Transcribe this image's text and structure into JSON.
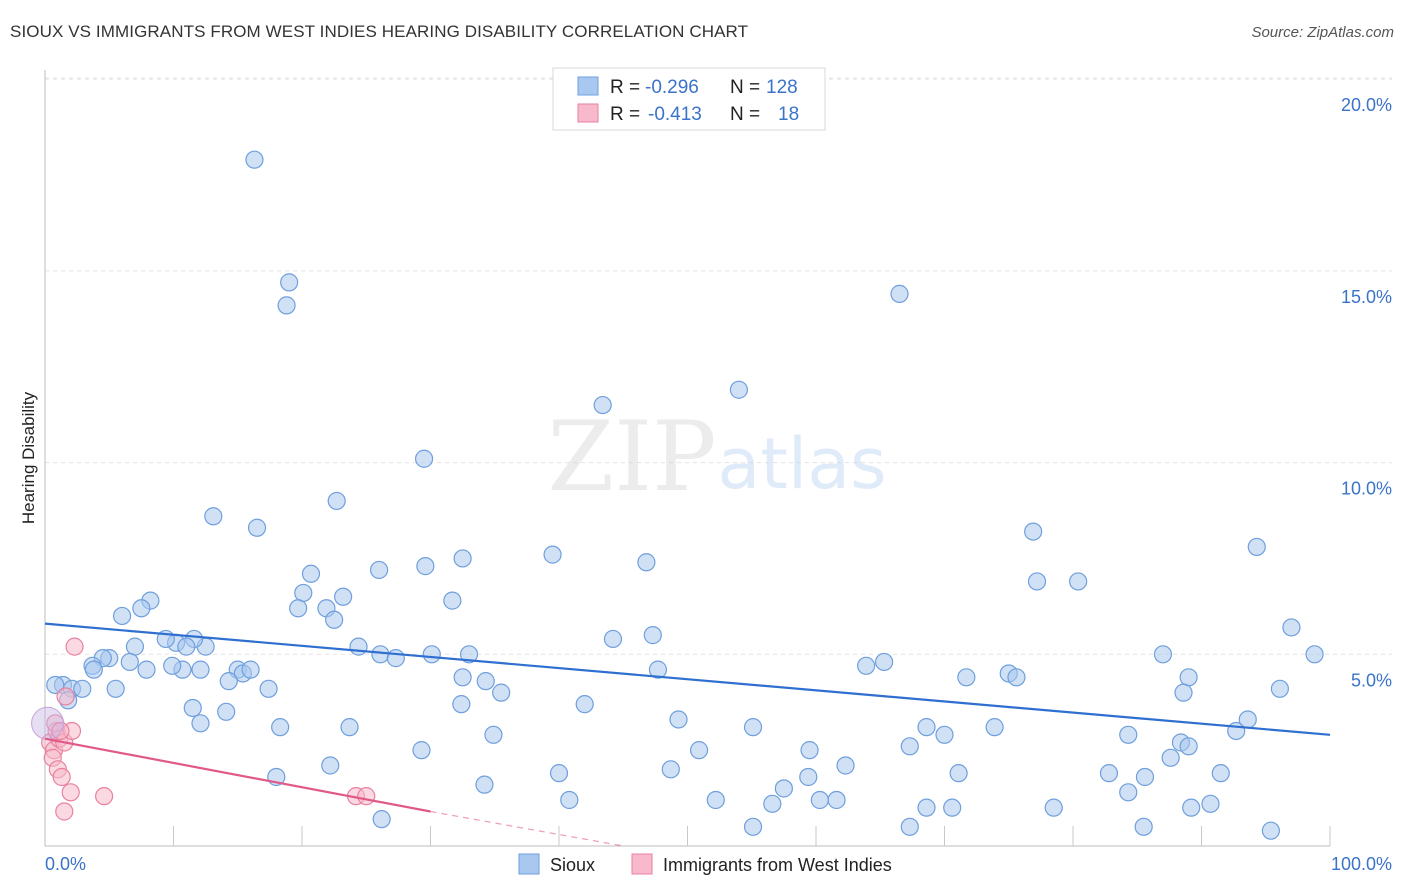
{
  "title": "SIOUX VS IMMIGRANTS FROM WEST INDIES HEARING DISABILITY CORRELATION CHART",
  "source": "Source: ZipAtlas.com",
  "watermark": {
    "zip": "ZIP",
    "atlas": "atlas"
  },
  "stats": [
    {
      "r_label": "R =",
      "r": "-0.296",
      "n_label": "N =",
      "n": "128",
      "color": "#a9c8ef",
      "stroke": "#6f9fdc"
    },
    {
      "r_label": "R =",
      "r": "-0.413",
      "n_label": "N =",
      "n": "18",
      "color": "#f7b9cb",
      "stroke": "#e9829f"
    }
  ],
  "chart_data": {
    "type": "scatter",
    "title": "SIOUX VS IMMIGRANTS FROM WEST INDIES HEARING DISABILITY CORRELATION CHART",
    "xlabel": "",
    "ylabel": "Hearing Disability",
    "xlim": [
      0,
      100
    ],
    "ylim": [
      0,
      20.5
    ],
    "x_tick_labels": [
      "0.0%",
      "100.0%"
    ],
    "y_ticks": [
      5,
      10,
      15,
      20
    ],
    "y_tick_labels": [
      "5.0%",
      "10.0%",
      "15.0%",
      "20.0%"
    ],
    "legend_position": "bottom-center",
    "series": [
      {
        "name": "Sioux",
        "color": "#a9c8ef",
        "stroke": "#6f9fdc",
        "trend": {
          "x0": 0,
          "y0": 5.8,
          "x1": 100,
          "y1": 2.9,
          "color": "#2f6fd0"
        },
        "points": [
          [
            16.3,
            17.9
          ],
          [
            18.8,
            14.1
          ],
          [
            19.0,
            14.7
          ],
          [
            66.5,
            14.4
          ],
          [
            54.0,
            11.9
          ],
          [
            43.4,
            11.5
          ],
          [
            29.5,
            10.1
          ],
          [
            22.7,
            9.0
          ],
          [
            13.1,
            8.6
          ],
          [
            16.5,
            8.3
          ],
          [
            76.9,
            8.2
          ],
          [
            94.3,
            7.8
          ],
          [
            32.5,
            7.5
          ],
          [
            39.5,
            7.6
          ],
          [
            46.8,
            7.4
          ],
          [
            26.0,
            7.2
          ],
          [
            29.6,
            7.3
          ],
          [
            20.7,
            7.1
          ],
          [
            77.2,
            6.9
          ],
          [
            80.4,
            6.9
          ],
          [
            20.1,
            6.6
          ],
          [
            23.2,
            6.5
          ],
          [
            31.7,
            6.4
          ],
          [
            8.2,
            6.4
          ],
          [
            6.0,
            6.0
          ],
          [
            7.5,
            6.2
          ],
          [
            19.7,
            6.2
          ],
          [
            21.9,
            6.2
          ],
          [
            22.5,
            5.9
          ],
          [
            97.0,
            5.7
          ],
          [
            12.5,
            5.2
          ],
          [
            11.6,
            5.4
          ],
          [
            10.2,
            5.3
          ],
          [
            11.0,
            5.2
          ],
          [
            7.0,
            5.2
          ],
          [
            44.2,
            5.4
          ],
          [
            47.3,
            5.5
          ],
          [
            24.4,
            5.2
          ],
          [
            26.1,
            5.0
          ],
          [
            27.3,
            4.9
          ],
          [
            30.1,
            5.0
          ],
          [
            33.0,
            5.0
          ],
          [
            98.8,
            5.0
          ],
          [
            87.0,
            5.0
          ],
          [
            5.0,
            4.9
          ],
          [
            4.5,
            4.9
          ],
          [
            6.6,
            4.8
          ],
          [
            3.7,
            4.7
          ],
          [
            3.8,
            4.6
          ],
          [
            7.9,
            4.6
          ],
          [
            12.1,
            4.6
          ],
          [
            15.0,
            4.6
          ],
          [
            15.4,
            4.5
          ],
          [
            16.0,
            4.6
          ],
          [
            10.7,
            4.6
          ],
          [
            9.9,
            4.7
          ],
          [
            17.4,
            4.1
          ],
          [
            14.3,
            4.3
          ],
          [
            63.9,
            4.7
          ],
          [
            65.3,
            4.8
          ],
          [
            47.7,
            4.6
          ],
          [
            32.5,
            4.4
          ],
          [
            34.3,
            4.3
          ],
          [
            71.7,
            4.4
          ],
          [
            75.0,
            4.5
          ],
          [
            75.6,
            4.4
          ],
          [
            89.0,
            4.4
          ],
          [
            1.4,
            4.2
          ],
          [
            2.1,
            4.1
          ],
          [
            2.9,
            4.1
          ],
          [
            0.8,
            4.2
          ],
          [
            1.8,
            3.8
          ],
          [
            5.5,
            4.1
          ],
          [
            35.5,
            4.0
          ],
          [
            88.6,
            4.0
          ],
          [
            96.1,
            4.1
          ],
          [
            11.5,
            3.6
          ],
          [
            12.1,
            3.2
          ],
          [
            14.1,
            3.5
          ],
          [
            32.4,
            3.7
          ],
          [
            42.0,
            3.7
          ],
          [
            49.3,
            3.3
          ],
          [
            55.1,
            3.1
          ],
          [
            68.6,
            3.1
          ],
          [
            70.0,
            2.9
          ],
          [
            73.9,
            3.1
          ],
          [
            23.7,
            3.1
          ],
          [
            92.7,
            3.0
          ],
          [
            93.6,
            3.3
          ],
          [
            9.4,
            5.4
          ],
          [
            18.3,
            3.1
          ],
          [
            34.9,
            2.9
          ],
          [
            84.3,
            2.9
          ],
          [
            88.4,
            2.7
          ],
          [
            89.0,
            2.6
          ],
          [
            50.9,
            2.5
          ],
          [
            59.5,
            2.5
          ],
          [
            67.3,
            2.6
          ],
          [
            87.6,
            2.3
          ],
          [
            29.3,
            2.5
          ],
          [
            22.2,
            2.1
          ],
          [
            18.0,
            1.8
          ],
          [
            40.0,
            1.9
          ],
          [
            48.7,
            2.0
          ],
          [
            62.3,
            2.1
          ],
          [
            71.1,
            1.9
          ],
          [
            82.8,
            1.9
          ],
          [
            85.6,
            1.8
          ],
          [
            91.5,
            1.9
          ],
          [
            34.2,
            1.6
          ],
          [
            59.4,
            1.8
          ],
          [
            40.8,
            1.2
          ],
          [
            52.2,
            1.2
          ],
          [
            56.6,
            1.1
          ],
          [
            57.5,
            1.5
          ],
          [
            60.3,
            1.2
          ],
          [
            61.6,
            1.2
          ],
          [
            68.6,
            1.0
          ],
          [
            70.6,
            1.0
          ],
          [
            78.5,
            1.0
          ],
          [
            84.3,
            1.4
          ],
          [
            89.2,
            1.0
          ],
          [
            90.7,
            1.1
          ],
          [
            26.2,
            0.7
          ],
          [
            55.1,
            0.5
          ],
          [
            67.3,
            0.5
          ],
          [
            85.5,
            0.5
          ],
          [
            95.4,
            0.4
          ]
        ]
      },
      {
        "name": "Immigrants from West Indies",
        "color": "#f7b9cb",
        "stroke": "#e9829f",
        "trend": {
          "x0": 0,
          "y0": 2.8,
          "x1": 30,
          "y1": 0.9,
          "color": "#e15a87",
          "dash_to": {
            "x": 45,
            "y": 0.0
          }
        },
        "points": [
          [
            0.4,
            2.7
          ],
          [
            0.7,
            2.5
          ],
          [
            0.9,
            3.0
          ],
          [
            1.1,
            2.8
          ],
          [
            0.6,
            2.3
          ],
          [
            0.8,
            3.2
          ],
          [
            1.5,
            2.7
          ],
          [
            1.6,
            3.9
          ],
          [
            2.1,
            3.0
          ],
          [
            2.3,
            5.2
          ],
          [
            1.0,
            2.0
          ],
          [
            1.3,
            1.8
          ],
          [
            2.0,
            1.4
          ],
          [
            4.6,
            1.3
          ],
          [
            1.5,
            0.9
          ],
          [
            24.2,
            1.3
          ],
          [
            25.0,
            1.3
          ],
          [
            1.2,
            3.0
          ]
        ]
      }
    ]
  }
}
